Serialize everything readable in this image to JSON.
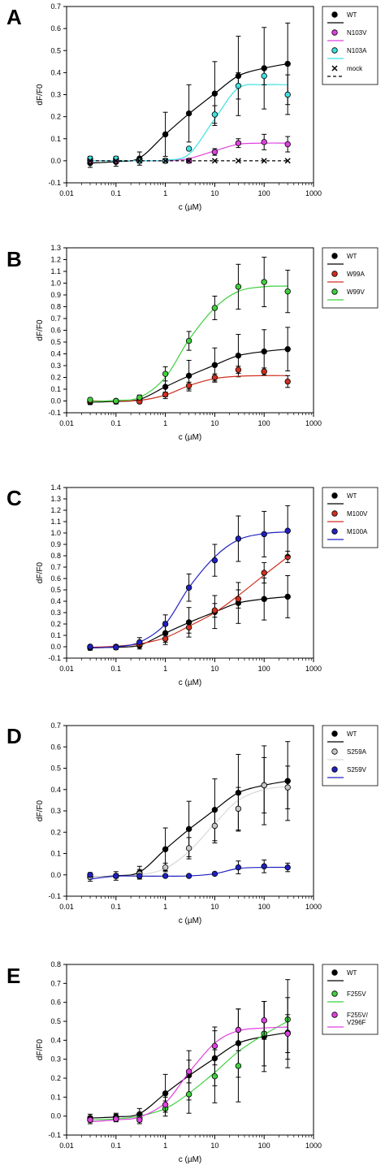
{
  "colors": {
    "black": "#000000",
    "magenta": "#e040e0",
    "cyan": "#40e0e0",
    "red": "#d03020",
    "green": "#40d040",
    "blue": "#2020c0",
    "grey": "#c8c8c8"
  },
  "chart_data": [
    {
      "panel": "A",
      "type": "scatter",
      "xscale": "log",
      "xlim": [
        0.01,
        1000
      ],
      "ylim": [
        -0.1,
        0.7
      ],
      "xticks": [
        "0.01",
        "0.1",
        "1",
        "10",
        "100",
        "1000"
      ],
      "yticks": [
        "-0.1",
        "0.0",
        "0.1",
        "0.2",
        "0.3",
        "0.4",
        "0.5",
        "0.6",
        "0.7"
      ],
      "xlabel": "c (µM)",
      "ylabel": "dF/F0",
      "grid": false,
      "legend_position": "top-right",
      "x": [
        0.03,
        0.1,
        0.3,
        1,
        3,
        10,
        30,
        100,
        300
      ],
      "series": [
        {
          "name": "WT",
          "marker_color": "#000000",
          "line_color": "#000000",
          "marker": "circle",
          "y": [
            -0.01,
            -0.005,
            0.01,
            0.12,
            0.215,
            0.305,
            0.385,
            0.42,
            0.44
          ],
          "err": [
            0.02,
            0.02,
            0.03,
            0.1,
            0.13,
            0.145,
            0.18,
            0.185,
            0.185
          ],
          "fit": [
            -0.01,
            -0.004,
            0.013,
            0.12,
            0.213,
            0.305,
            0.385,
            0.42,
            0.44
          ]
        },
        {
          "name": "N103V",
          "marker_color": "#e040e0",
          "line_color": "#e040e0",
          "marker": "circle",
          "y": [
            0,
            0,
            0,
            0,
            0,
            0.04,
            0.08,
            0.085,
            0.075
          ],
          "err": [
            0,
            0,
            0,
            0,
            0,
            0.015,
            0.02,
            0.035,
            0.035
          ],
          "fit": [
            0,
            0,
            0,
            0,
            0.01,
            0.045,
            0.075,
            0.08,
            0.08
          ]
        },
        {
          "name": "N103A",
          "marker_color": "#40e0e0",
          "line_color": "#40e0e0",
          "marker": "circle",
          "y": [
            0.01,
            0.01,
            0,
            0,
            0.055,
            0.21,
            0.34,
            0.385,
            0.3
          ],
          "err": [
            0.01,
            0.01,
            0,
            0,
            0,
            0.04,
            0.06,
            0.04,
            0.09
          ],
          "fit": [
            0,
            0,
            0,
            0.003,
            0.03,
            0.19,
            0.33,
            0.345,
            0.345
          ]
        },
        {
          "name": "mock",
          "marker_color": "#000000",
          "line_color": "#000000",
          "marker": "x",
          "line_dash": "dashed",
          "y": [
            0,
            0,
            0,
            0,
            0,
            0,
            0,
            0,
            0
          ],
          "err": [
            0,
            0,
            0,
            0,
            0,
            0,
            0,
            0,
            0
          ],
          "fit": [
            0,
            0,
            0,
            0,
            0,
            0,
            0,
            0,
            0
          ]
        }
      ]
    },
    {
      "panel": "B",
      "type": "scatter",
      "xscale": "log",
      "xlim": [
        0.01,
        1000
      ],
      "ylim": [
        -0.1,
        1.3
      ],
      "xticks": [
        "0.01",
        "0.1",
        "1",
        "10",
        "100",
        "1000"
      ],
      "yticks": [
        "-0.1",
        "0.0",
        "0.1",
        "0.2",
        "0.3",
        "0.4",
        "0.5",
        "0.6",
        "0.7",
        "0.8",
        "0.9",
        "1.0",
        "1.1",
        "1.2",
        "1.3"
      ],
      "xlabel": "c (µM)",
      "ylabel": "dF/F0",
      "grid": false,
      "legend_position": "top-right",
      "x": [
        0.03,
        0.1,
        0.3,
        1,
        3,
        10,
        30,
        100,
        300
      ],
      "series": [
        {
          "name": "WT",
          "marker_color": "#000000",
          "line_color": "#000000",
          "marker": "circle",
          "y": [
            -0.01,
            -0.005,
            0.01,
            0.12,
            0.215,
            0.305,
            0.385,
            0.42,
            0.44
          ],
          "err": [
            0.02,
            0.02,
            0.03,
            0.1,
            0.13,
            0.145,
            0.18,
            0.185,
            0.185
          ],
          "fit": [
            -0.01,
            -0.004,
            0.013,
            0.12,
            0.213,
            0.305,
            0.385,
            0.42,
            0.44
          ]
        },
        {
          "name": "W99A",
          "marker_color": "#d03020",
          "line_color": "#d03020",
          "marker": "circle",
          "y": [
            0,
            0,
            -0.005,
            0.055,
            0.13,
            0.2,
            0.265,
            0.25,
            0.165
          ],
          "err": [
            0,
            0,
            0,
            0.02,
            0.03,
            0.03,
            0.03,
            0.03,
            0.05
          ],
          "fit": [
            0,
            0,
            0.005,
            0.05,
            0.13,
            0.19,
            0.21,
            0.215,
            0.215
          ]
        },
        {
          "name": "W99V",
          "marker_color": "#40d040",
          "line_color": "#40d040",
          "marker": "circle",
          "y": [
            0.01,
            0,
            0.03,
            0.23,
            0.51,
            0.79,
            0.97,
            1.01,
            0.93
          ],
          "err": [
            0.01,
            0.01,
            0.02,
            0.06,
            0.08,
            0.1,
            0.19,
            0.21,
            0.18
          ],
          "fit": [
            -0.005,
            0.005,
            0.03,
            0.2,
            0.52,
            0.79,
            0.93,
            0.97,
            0.975
          ]
        }
      ]
    },
    {
      "panel": "C",
      "type": "scatter",
      "xscale": "log",
      "xlim": [
        0.01,
        1000
      ],
      "ylim": [
        -0.1,
        1.4
      ],
      "xticks": [
        "0.01",
        "0.1",
        "1",
        "10",
        "100",
        "1000"
      ],
      "yticks": [
        "-0.1",
        "0.0",
        "0.1",
        "0.2",
        "0.3",
        "0.4",
        "0.5",
        "0.6",
        "0.7",
        "0.8",
        "0.9",
        "1.0",
        "1.1",
        "1.2",
        "1.3",
        "1.4"
      ],
      "xlabel": "c (µM)",
      "ylabel": "dF/F0",
      "grid": false,
      "legend_position": "top-right",
      "x": [
        0.03,
        0.1,
        0.3,
        1,
        3,
        10,
        30,
        100,
        300
      ],
      "series": [
        {
          "name": "WT",
          "marker_color": "#000000",
          "line_color": "#000000",
          "marker": "circle",
          "y": [
            -0.01,
            -0.005,
            0.01,
            0.12,
            0.215,
            0.305,
            0.385,
            0.42,
            0.44
          ],
          "err": [
            0.02,
            0.02,
            0.03,
            0.1,
            0.13,
            0.145,
            0.18,
            0.185,
            0.185
          ],
          "fit": [
            -0.01,
            -0.004,
            0.013,
            0.12,
            0.213,
            0.305,
            0.385,
            0.42,
            0.44
          ]
        },
        {
          "name": "M100V",
          "marker_color": "#d03020",
          "line_color": "#d03020",
          "marker": "circle",
          "y": [
            0,
            0,
            0.02,
            0.07,
            0.17,
            0.32,
            0.42,
            0.65,
            0.79
          ],
          "err": [
            0,
            0,
            0.02,
            0.03,
            0.05,
            0.06,
            0.08,
            0.09,
            0.05
          ],
          "fit": [
            -0.005,
            0.005,
            0.025,
            0.08,
            0.18,
            0.3,
            0.45,
            0.63,
            0.79
          ]
        },
        {
          "name": "M100A",
          "marker_color": "#2020c0",
          "line_color": "#2020c0",
          "marker": "circle",
          "y": [
            0,
            -0.005,
            0.04,
            0.2,
            0.52,
            0.76,
            0.95,
            0.99,
            1.02
          ],
          "err": [
            0.01,
            0.01,
            0.04,
            0.08,
            0.12,
            0.14,
            0.2,
            0.2,
            0.22
          ],
          "fit": [
            -0.01,
            0.0,
            0.04,
            0.2,
            0.52,
            0.79,
            0.94,
            0.995,
            1.01
          ]
        }
      ]
    },
    {
      "panel": "D",
      "type": "scatter",
      "xscale": "log",
      "xlim": [
        0.01,
        1000
      ],
      "ylim": [
        -0.1,
        0.7
      ],
      "xticks": [
        "0.01",
        "0.1",
        "1",
        "10",
        "100",
        "1000"
      ],
      "yticks": [
        "-0.1",
        "0.0",
        "0.1",
        "0.2",
        "0.3",
        "0.4",
        "0.5",
        "0.6",
        "0.7"
      ],
      "xlabel": "c (µM)",
      "ylabel": "dF/F0",
      "grid": false,
      "legend_position": "top-right",
      "x": [
        0.03,
        0.1,
        0.3,
        1,
        3,
        10,
        30,
        100,
        300
      ],
      "series": [
        {
          "name": "WT",
          "marker_color": "#000000",
          "line_color": "#000000",
          "marker": "circle",
          "y": [
            -0.01,
            -0.005,
            0.01,
            0.12,
            0.215,
            0.305,
            0.385,
            0.42,
            0.44
          ],
          "err": [
            0.02,
            0.02,
            0.03,
            0.1,
            0.13,
            0.145,
            0.18,
            0.185,
            0.185
          ],
          "fit": [
            -0.01,
            -0.004,
            0.013,
            0.12,
            0.213,
            0.305,
            0.385,
            0.42,
            0.44
          ]
        },
        {
          "name": "S259A",
          "marker_color": "#c8c8c8",
          "line_color": "#d8d8d8",
          "marker": "circle",
          "y": [
            -0.01,
            -0.005,
            0.005,
            0.035,
            0.125,
            0.23,
            0.31,
            0.42,
            0.41
          ],
          "err": [
            0.01,
            0.01,
            0.02,
            0.02,
            0.05,
            0.08,
            0.1,
            0.13,
            0.1
          ],
          "fit": [
            -0.01,
            -0.007,
            0.0,
            0.03,
            0.11,
            0.24,
            0.35,
            0.4,
            0.415
          ]
        },
        {
          "name": "S259V",
          "marker_color": "#2020c0",
          "line_color": "#2020c0",
          "marker": "circle",
          "y": [
            0,
            -0.005,
            -0.005,
            -0.005,
            -0.005,
            0.005,
            0.035,
            0.04,
            0.035
          ],
          "err": [
            0.01,
            0.005,
            0.005,
            0.005,
            0,
            0.005,
            0.03,
            0.03,
            0.02
          ],
          "fit": [
            -0.02,
            -0.006,
            -0.006,
            -0.006,
            -0.005,
            0.005,
            0.03,
            0.035,
            0.035
          ]
        }
      ]
    },
    {
      "panel": "E",
      "type": "scatter",
      "xscale": "log",
      "xlim": [
        0.01,
        1000
      ],
      "ylim": [
        -0.1,
        0.8
      ],
      "xticks": [
        "0.01",
        "0.1",
        "1",
        "10",
        "100",
        "1000"
      ],
      "yticks": [
        "-0.1",
        "0.0",
        "0.1",
        "0.2",
        "0.3",
        "0.4",
        "0.5",
        "0.6",
        "0.7",
        "0.8"
      ],
      "xlabel": "c (µM)",
      "ylabel": "dF/F0",
      "grid": false,
      "legend_position": "top-right",
      "x": [
        0.03,
        0.1,
        0.3,
        1,
        3,
        10,
        30,
        100,
        300
      ],
      "series": [
        {
          "name": "WT",
          "marker_color": "#000000",
          "line_color": "#000000",
          "marker": "circle",
          "y": [
            -0.01,
            -0.005,
            0.01,
            0.12,
            0.215,
            0.305,
            0.385,
            0.42,
            0.44
          ],
          "err": [
            0.02,
            0.02,
            0.03,
            0.1,
            0.13,
            0.145,
            0.18,
            0.185,
            0.185
          ],
          "fit": [
            -0.01,
            -0.004,
            0.013,
            0.12,
            0.213,
            0.305,
            0.385,
            0.42,
            0.44
          ]
        },
        {
          "name": "F255V",
          "marker_color": "#40d040",
          "line_color": "#40d040",
          "marker": "circle",
          "y": [
            -0.02,
            -0.01,
            -0.01,
            0.04,
            0.115,
            0.21,
            0.265,
            0.435,
            0.51
          ],
          "err": [
            0.02,
            0.02,
            0.02,
            0.04,
            0.1,
            0.14,
            0.19,
            0.17,
            0.21
          ],
          "fit": [
            -0.02,
            -0.015,
            0.0,
            0.04,
            0.12,
            0.23,
            0.34,
            0.43,
            0.5
          ]
        },
        {
          "name": "F255V/ V296F",
          "marker_color": "#e040e0",
          "line_color": "#e040e0",
          "marker": "circle",
          "y": [
            -0.02,
            -0.015,
            -0.02,
            0.06,
            0.235,
            0.37,
            0.455,
            0.505,
            0.435
          ],
          "err": [
            0.01,
            0.01,
            0.02,
            0.04,
            0.06,
            0.1,
            0.11,
            0.1,
            0.1
          ],
          "fit": [
            -0.03,
            -0.02,
            -0.005,
            0.07,
            0.23,
            0.385,
            0.45,
            0.465,
            0.47
          ]
        }
      ]
    }
  ]
}
